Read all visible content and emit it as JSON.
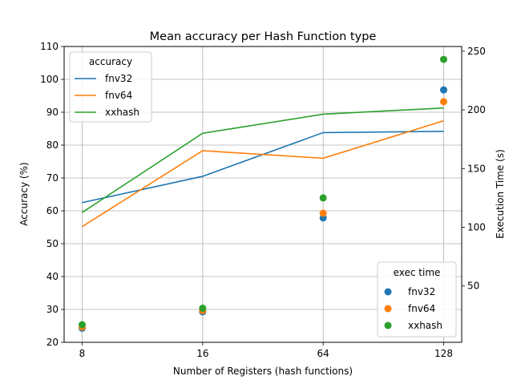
{
  "chart_data": {
    "type": "line",
    "title": "Mean accuracy per Hash Function type",
    "xlabel": "Number of Registers (hash functions)",
    "ylabel": "Accuracy (%)",
    "y2label": "Execution Time (s)",
    "categories": [
      "8",
      "16",
      "64",
      "128"
    ],
    "ylim": [
      20,
      110
    ],
    "yticks": [
      20,
      30,
      40,
      50,
      60,
      70,
      80,
      90,
      100,
      110
    ],
    "y2lim": [
      2,
      254
    ],
    "y2ticks": [
      50,
      100,
      150,
      200,
      250
    ],
    "grid": true,
    "legend_accuracy": {
      "title": "accuracy",
      "placement": "upper-left"
    },
    "legend_exec": {
      "title": "exec time",
      "placement": "lower-right"
    },
    "accuracy_series": [
      {
        "name": "fnv32",
        "color": "#1f77b4",
        "values": [
          62.5,
          70.5,
          83.8,
          84.2
        ]
      },
      {
        "name": "fnv64",
        "color": "#ff7f0e",
        "values": [
          55.2,
          78.3,
          76.0,
          87.4
        ]
      },
      {
        "name": "xxhash",
        "color": "#2ca02c",
        "values": [
          59.5,
          83.6,
          89.4,
          91.3
        ]
      }
    ],
    "exec_time_series": [
      {
        "name": "fnv32",
        "color": "#1f77b4",
        "values": [
          14,
          28,
          108,
          217
        ]
      },
      {
        "name": "fnv64",
        "color": "#ff7f0e",
        "values": [
          15,
          29,
          112,
          207
        ]
      },
      {
        "name": "xxhash",
        "color": "#2ca02c",
        "values": [
          17,
          31,
          125,
          243
        ]
      }
    ]
  }
}
